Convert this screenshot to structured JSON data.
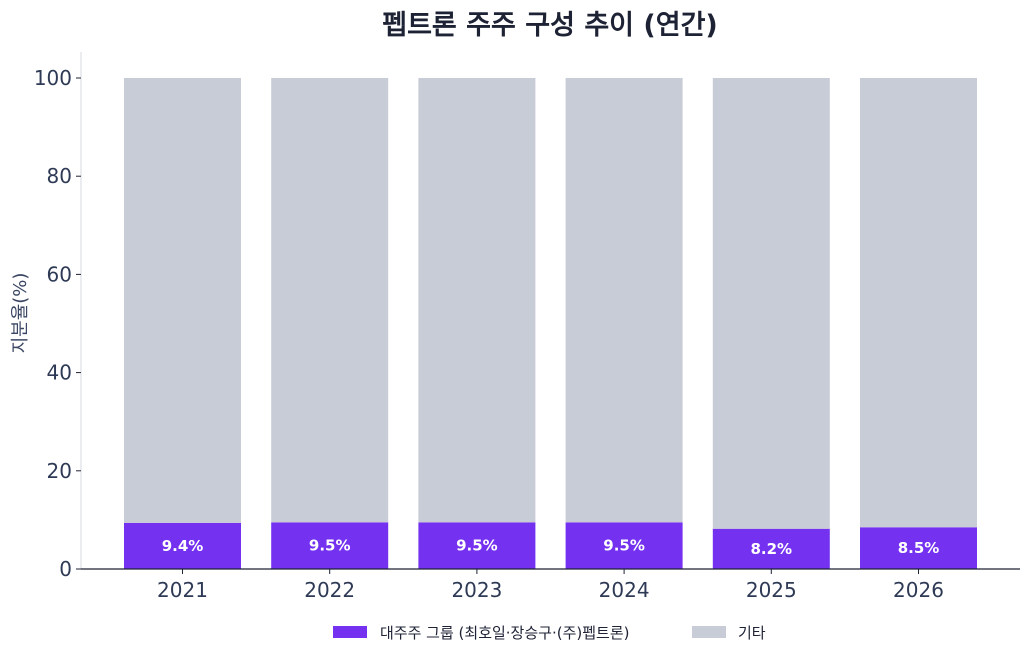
{
  "chart_data": {
    "type": "bar",
    "stacked": true,
    "title": "펩트론 주주 구성 추이 (연간)",
    "xlabel": "",
    "ylabel": "지분율(%)",
    "ylim": [
      0,
      100
    ],
    "yticks": [
      0,
      20,
      40,
      60,
      80,
      100
    ],
    "categories": [
      "2021",
      "2022",
      "2023",
      "2024",
      "2025",
      "2026"
    ],
    "series": [
      {
        "name": "대주주 그룹 (최호일·장승구·(주)펩트론)",
        "color": "#7431f0",
        "values": [
          9.4,
          9.5,
          9.5,
          9.5,
          8.2,
          8.5
        ],
        "labels": [
          "9.4%",
          "9.5%",
          "9.5%",
          "9.5%",
          "8.2%",
          "8.5%"
        ]
      },
      {
        "name": "기타",
        "color": "#c8ccd6",
        "values": [
          90.6,
          90.5,
          90.5,
          90.5,
          91.8,
          91.5
        ]
      }
    ],
    "grid": false,
    "legend_position": "bottom-center"
  }
}
